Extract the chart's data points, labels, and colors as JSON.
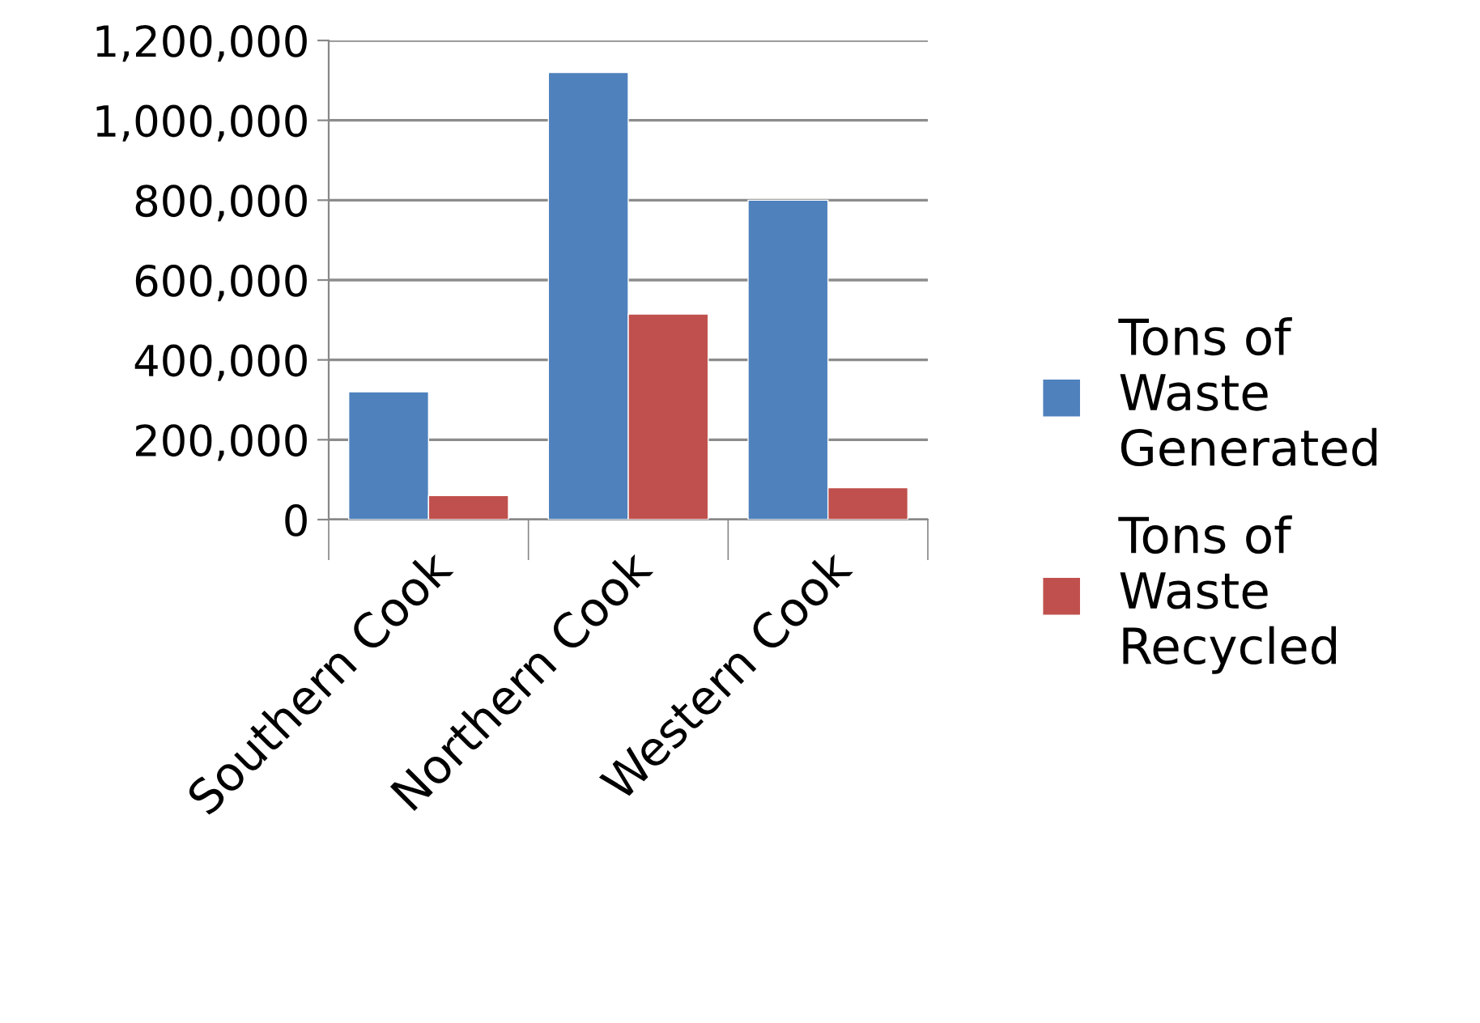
{
  "chart_data": {
    "type": "bar",
    "categories": [
      "Southern Cook",
      "Northern Cook",
      "Western Cook"
    ],
    "series": [
      {
        "name": "Tons of\nWaste\nGenerated",
        "color": "#4f81bd",
        "values": [
          320000,
          1120000,
          800000
        ]
      },
      {
        "name": "Tons of\nWaste\nRecycled",
        "color": "#c0504d",
        "values": [
          60000,
          515000,
          80000
        ]
      }
    ],
    "ylim": [
      0,
      1200000
    ],
    "yticks": [
      {
        "value": 0,
        "label": "0"
      },
      {
        "value": 200000,
        "label": "200,000"
      },
      {
        "value": 400000,
        "label": "400,000"
      },
      {
        "value": 600000,
        "label": "600,000"
      },
      {
        "value": 800000,
        "label": "800,000"
      },
      {
        "value": 1000000,
        "label": "1,000,000"
      },
      {
        "value": 1200000,
        "label": "1,200,000"
      }
    ],
    "grid": "y",
    "legend": "right"
  }
}
